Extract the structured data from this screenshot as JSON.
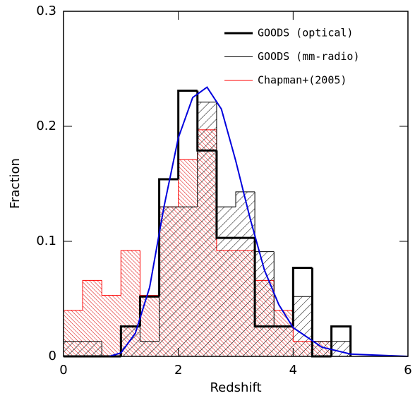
{
  "chart_data": {
    "type": "histogram",
    "x_label": "Redshift",
    "y_label": "Fraction",
    "bins": [
      0,
      0.333,
      0.667,
      1,
      1.333,
      1.667,
      2,
      2.333,
      2.667,
      3,
      3.333,
      3.667,
      4,
      4.333,
      4.667,
      5
    ],
    "series": [
      {
        "name": "GOODS (optical)",
        "color": "#000000",
        "values": [
          0,
          0,
          0,
          0.026,
          0.052,
          0.154,
          0.231,
          0.179,
          0.103,
          0.103,
          0.026,
          0.026,
          0.077,
          0,
          0.026
        ]
      },
      {
        "name": "GOODS (mm-radio)",
        "color": "#000000",
        "values": [
          0.013,
          0.013,
          0,
          0.026,
          0.013,
          0.13,
          0.13,
          0.221,
          0.13,
          0.143,
          0.091,
          0.026,
          0.052,
          0.013,
          0.013
        ]
      },
      {
        "name": "Chapman+(2005)",
        "color": "#ff0000",
        "values": [
          0.04,
          0.066,
          0.053,
          0.092,
          0.053,
          0.13,
          0.171,
          0.197,
          0.092,
          0.092,
          0.066,
          0.04,
          0.013,
          0.013,
          0
        ]
      }
    ],
    "curve": {
      "color": "#0000dd",
      "x": [
        0.8,
        1,
        1.25,
        1.5,
        1.75,
        2,
        2.25,
        2.5,
        2.75,
        3,
        3.25,
        3.5,
        3.75,
        4,
        4.5,
        5,
        6
      ],
      "y": [
        0,
        0.003,
        0.02,
        0.06,
        0.13,
        0.19,
        0.225,
        0.234,
        0.215,
        0.17,
        0.12,
        0.075,
        0.045,
        0.025,
        0.008,
        0.002,
        0
      ]
    },
    "xlim": [
      0,
      6
    ],
    "ylim": [
      0,
      0.3
    ],
    "xticks": [
      0,
      2,
      4,
      6
    ],
    "yticks": [
      0,
      0.1,
      0.2,
      0.3
    ],
    "legend": "upper right"
  }
}
